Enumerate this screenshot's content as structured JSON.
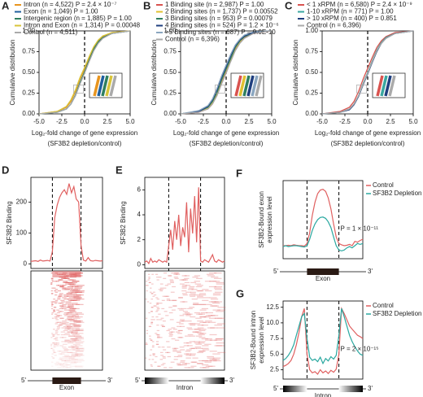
{
  "chart_data": [
    {
      "type": "cdf",
      "panel_label": "A",
      "x_label": [
        "Log₂-fold change of gene expression",
        "(SF3B2 depletion/control)"
      ],
      "y_label": "Cumulative distribution",
      "x": [
        -5,
        -3,
        -2,
        -1.5,
        -1,
        -0.5,
        0,
        0.5,
        1,
        1.5,
        2,
        3,
        5
      ],
      "series": [
        {
          "name": "Intron (n = 4,522) P = 2.4 × 10⁻⁷",
          "color": "#e8951f",
          "values": [
            0,
            0.03,
            0.08,
            0.15,
            0.27,
            0.42,
            0.54,
            0.67,
            0.8,
            0.88,
            0.93,
            0.98,
            1
          ]
        },
        {
          "name": "Exon (n = 1,049) P = 1.00",
          "color": "#1f5f9e",
          "values": [
            0,
            0.02,
            0.06,
            0.12,
            0.22,
            0.37,
            0.5,
            0.64,
            0.77,
            0.86,
            0.92,
            0.97,
            1
          ]
        },
        {
          "name": "Intergenic region (n = 1,885) P = 1.00",
          "color": "#2f7f5f",
          "values": [
            0,
            0.02,
            0.06,
            0.12,
            0.23,
            0.38,
            0.51,
            0.65,
            0.78,
            0.87,
            0.92,
            0.97,
            1
          ]
        },
        {
          "name": "Intron and Exon (n = 1,314) P = 0.00048",
          "color": "#d8c43a",
          "values": [
            0,
            0.03,
            0.09,
            0.17,
            0.29,
            0.44,
            0.56,
            0.69,
            0.81,
            0.89,
            0.94,
            0.98,
            1
          ]
        },
        {
          "name": "Control (n = 4,511)",
          "color": "#aaaaaa",
          "values": [
            0,
            0.02,
            0.06,
            0.12,
            0.22,
            0.36,
            0.49,
            0.63,
            0.76,
            0.85,
            0.91,
            0.97,
            1
          ]
        }
      ],
      "xlim": [
        -5,
        5
      ],
      "ylim": [
        0,
        1
      ],
      "vlines": [
        0
      ],
      "xticks": [
        {
          "value": -5,
          "label": "-5.0"
        },
        {
          "value": -2.5,
          "label": "-2.5"
        },
        {
          "value": 0,
          "label": "0.0"
        },
        {
          "value": 2.5,
          "label": "2.5"
        },
        {
          "value": 5,
          "label": "5.0"
        }
      ],
      "yticks": [
        {
          "value": 0,
          "label": "0.00"
        },
        {
          "value": 0.25,
          "label": "0.25"
        },
        {
          "value": 0.5,
          "label": "0.50"
        },
        {
          "value": 0.75,
          "label": "0.75"
        },
        {
          "value": 1,
          "label": "1.00"
        }
      ]
    },
    {
      "type": "cdf",
      "panel_label": "B",
      "x_label": [
        "Log₂-fold change of gene expression",
        "(SF3B2 depletion/control)"
      ],
      "y_label": "Cumulative distribution",
      "x": [
        -5,
        -3,
        -2,
        -1.5,
        -1,
        -0.5,
        0,
        0.5,
        1,
        1.5,
        2,
        3,
        5
      ],
      "series": [
        {
          "name": "1 Binding site (n = 2,987) P = 1.00",
          "color": "#d9534f",
          "values": [
            0,
            0.02,
            0.06,
            0.12,
            0.23,
            0.37,
            0.5,
            0.64,
            0.77,
            0.86,
            0.92,
            0.97,
            1
          ]
        },
        {
          "name": "2 Binding sites (n = 1,737) P = 0.00552",
          "color": "#e0c030",
          "values": [
            0,
            0.03,
            0.07,
            0.14,
            0.25,
            0.4,
            0.53,
            0.66,
            0.79,
            0.87,
            0.93,
            0.98,
            1
          ]
        },
        {
          "name": "3 Binding sites (n = 953) P = 0.00079",
          "color": "#2f7f5f",
          "values": [
            0,
            0.03,
            0.08,
            0.15,
            0.26,
            0.41,
            0.54,
            0.67,
            0.8,
            0.88,
            0.93,
            0.98,
            1
          ]
        },
        {
          "name": "4 Binding sites (n = 524) P = 1.2 × 10⁻⁶",
          "color": "#1f3f7f",
          "values": [
            0,
            0.03,
            0.09,
            0.17,
            0.29,
            0.44,
            0.57,
            0.7,
            0.82,
            0.89,
            0.94,
            0.98,
            1
          ]
        },
        {
          "name": ">5 Binding sites (n = 687) P = 9.0E-10",
          "color": "#8aa6c0",
          "values": [
            0,
            0.04,
            0.1,
            0.18,
            0.31,
            0.46,
            0.59,
            0.72,
            0.83,
            0.9,
            0.95,
            0.99,
            1
          ]
        },
        {
          "name": "Control (n = 6,396)",
          "color": "#aaaaaa",
          "values": [
            0,
            0.02,
            0.06,
            0.12,
            0.22,
            0.36,
            0.49,
            0.63,
            0.76,
            0.85,
            0.91,
            0.97,
            1
          ]
        }
      ],
      "xlim": [
        -5,
        5
      ],
      "ylim": [
        0,
        1
      ],
      "vlines": [
        0
      ],
      "xticks": [
        {
          "value": -5,
          "label": "-5.0"
        },
        {
          "value": -2.5,
          "label": "-2.5"
        },
        {
          "value": 0,
          "label": "0.0"
        },
        {
          "value": 2.5,
          "label": "2.5"
        },
        {
          "value": 5,
          "label": "5.0"
        }
      ],
      "yticks": [
        {
          "value": 0,
          "label": "0.00"
        },
        {
          "value": 0.25,
          "label": "0.25"
        },
        {
          "value": 0.5,
          "label": "0.50"
        },
        {
          "value": 0.75,
          "label": "0.75"
        },
        {
          "value": 1,
          "label": "1.00"
        }
      ]
    },
    {
      "type": "cdf",
      "panel_label": "C",
      "x_label": [
        "Log₂-fold change of gene expression",
        "(SF3B2 depletion/control)"
      ],
      "y_label": "Cumulative distribution",
      "x": [
        -5,
        -3,
        -2,
        -1.5,
        -1,
        -0.5,
        0,
        0.5,
        1,
        1.5,
        2,
        3,
        5
      ],
      "series": [
        {
          "name": "< 1 xRPM (n = 6,580) P = 2.4 × 10⁻⁹",
          "color": "#d9534f",
          "values": [
            0,
            0.03,
            0.08,
            0.15,
            0.27,
            0.42,
            0.55,
            0.68,
            0.8,
            0.88,
            0.93,
            0.98,
            1
          ]
        },
        {
          "name": "1-10 xRPM (n = 771) P = 1.00",
          "color": "#3aa7a0",
          "values": [
            0,
            0.02,
            0.06,
            0.12,
            0.22,
            0.37,
            0.5,
            0.64,
            0.77,
            0.86,
            0.92,
            0.97,
            1
          ]
        },
        {
          "name": "> 10 xRPM (n = 400) P = 0.851",
          "color": "#1f3f7f",
          "values": [
            0,
            0.02,
            0.05,
            0.11,
            0.21,
            0.35,
            0.48,
            0.62,
            0.75,
            0.85,
            0.91,
            0.97,
            1
          ]
        },
        {
          "name": "Control (n = 6,396)",
          "color": "#aaaaaa",
          "values": [
            0,
            0.02,
            0.06,
            0.12,
            0.22,
            0.36,
            0.49,
            0.63,
            0.76,
            0.85,
            0.91,
            0.97,
            1
          ]
        }
      ],
      "xlim": [
        -5,
        5
      ],
      "ylim": [
        0,
        1
      ],
      "vlines": [
        0
      ],
      "xticks": [
        {
          "value": -5,
          "label": "-5.0"
        },
        {
          "value": -2.5,
          "label": "-2.5"
        },
        {
          "value": 0,
          "label": "0.0"
        },
        {
          "value": 2.5,
          "label": "2.5"
        },
        {
          "value": 5,
          "label": "5.0"
        }
      ],
      "yticks": [
        {
          "value": 0,
          "label": "0.00"
        },
        {
          "value": 0.25,
          "label": "0.25"
        },
        {
          "value": 0.5,
          "label": "0.50"
        },
        {
          "value": 0.75,
          "label": "0.75"
        },
        {
          "value": 1,
          "label": "1.00"
        }
      ]
    },
    {
      "type": "profile",
      "panel_label": "D",
      "y_label": [
        "SF3B2 Binding"
      ],
      "series": [
        {
          "color": "#e06060",
          "values": [
            8,
            9,
            10,
            8,
            12,
            9,
            10,
            11,
            9,
            40,
            150,
            190,
            215,
            230,
            240,
            225,
            260,
            230,
            250,
            210,
            200,
            60,
            12,
            9,
            20,
            10,
            9,
            11,
            10,
            9,
            10
          ]
        }
      ],
      "ylim": [
        -15,
        280
      ],
      "yticks": [
        0,
        100,
        200
      ],
      "gene": {
        "kind": "exon",
        "label": "Exon",
        "left": "5'",
        "right": "3'"
      }
    },
    {
      "type": "profile",
      "panel_label": "E",
      "y_label": [
        "SF3B2 Binding"
      ],
      "series": [
        {
          "color": "#e06060",
          "values": [
            0.2,
            0.3,
            0.1,
            0.5,
            0.2,
            0.3,
            0.2,
            0.4,
            0.3,
            0.2,
            0.3,
            0.2,
            1.5,
            2.8,
            1.2,
            3.5,
            2.0,
            4.0,
            1.5,
            3.0,
            2.2,
            5.0,
            1.0,
            4.5,
            2.5,
            5.5,
            1.8,
            6.2,
            0.3,
            0.2,
            0.4,
            0.3,
            0.2,
            0.5,
            0.8,
            0.3,
            0.2,
            0.4,
            0.3,
            0.2,
            0.3
          ]
        }
      ],
      "ylim": [
        -0.3,
        7
      ],
      "yticks": [
        0,
        2,
        4,
        6
      ],
      "gene": {
        "kind": "intron",
        "label": "Intron",
        "left": "5'",
        "right": "3'"
      }
    },
    {
      "type": "profile",
      "panel_label": "F",
      "y_label": [
        "SF3B2-Bound exon",
        "expression level"
      ],
      "series": [
        {
          "name": "Control",
          "color": "#e06060",
          "values": [
            30,
            30,
            31,
            30,
            32,
            31,
            30,
            30,
            29,
            35,
            60,
            100,
            130,
            150,
            158,
            160,
            155,
            140,
            115,
            80,
            50,
            35,
            32,
            30,
            31,
            33,
            30,
            40,
            38,
            42,
            45
          ]
        },
        {
          "name": "SF3B2 Depletion",
          "color": "#2aa8a0",
          "values": [
            28,
            30,
            28,
            29,
            30,
            30,
            29,
            28,
            27,
            30,
            45,
            65,
            80,
            90,
            95,
            96,
            93,
            85,
            72,
            50,
            30,
            20,
            18,
            20,
            25,
            28,
            25,
            30,
            35,
            33,
            35
          ]
        }
      ],
      "ylim": [
        0,
        180
      ],
      "annotation": "P = 1 × 10⁻¹¹",
      "gene": {
        "kind": "exon",
        "label": "Exon",
        "left": "5'",
        "right": "3'"
      }
    },
    {
      "type": "profile",
      "panel_label": "G",
      "y_label": [
        "SF3B2-Bound intron",
        "expression level"
      ],
      "series": [
        {
          "name": "Control",
          "color": "#e06060",
          "values": [
            3.0,
            3.2,
            3.5,
            4.0,
            5.0,
            6.5,
            8.5,
            11.0,
            12.3,
            5.0,
            2.5,
            2.0,
            2.2,
            1.8,
            2.5,
            2.0,
            2.3,
            1.9,
            2.4,
            2.1,
            2.6,
            5.0,
            12.3,
            11.5,
            10.5,
            9.5,
            9.0,
            8.5,
            8.0,
            7.8,
            7.5
          ]
        },
        {
          "name": "SF3B2 Depletion",
          "color": "#2aa8a0",
          "values": [
            4.0,
            4.3,
            4.8,
            5.5,
            6.5,
            8.0,
            9.5,
            11.0,
            11.5,
            7.5,
            4.5,
            4.0,
            4.2,
            3.8,
            4.5,
            3.5,
            4.3,
            3.9,
            4.6,
            4.2,
            4.8,
            8.0,
            12.3,
            11.0,
            9.5,
            8.0,
            7.0,
            6.2,
            5.5,
            5.0,
            4.8
          ]
        }
      ],
      "ylim": [
        1,
        13.5
      ],
      "annotation": "P = 2 × 10⁻¹⁵",
      "yticks": [
        {
          "value": 2.5,
          "label": "2.5"
        },
        {
          "value": 5,
          "label": "5.0"
        },
        {
          "value": 7.5,
          "label": "7.5"
        },
        {
          "value": 10,
          "label": "10.0"
        },
        {
          "value": 12.5,
          "label": "12.5"
        }
      ],
      "gene": {
        "kind": "intron",
        "label": "Intron",
        "left": "5'",
        "right": "3'"
      }
    }
  ]
}
